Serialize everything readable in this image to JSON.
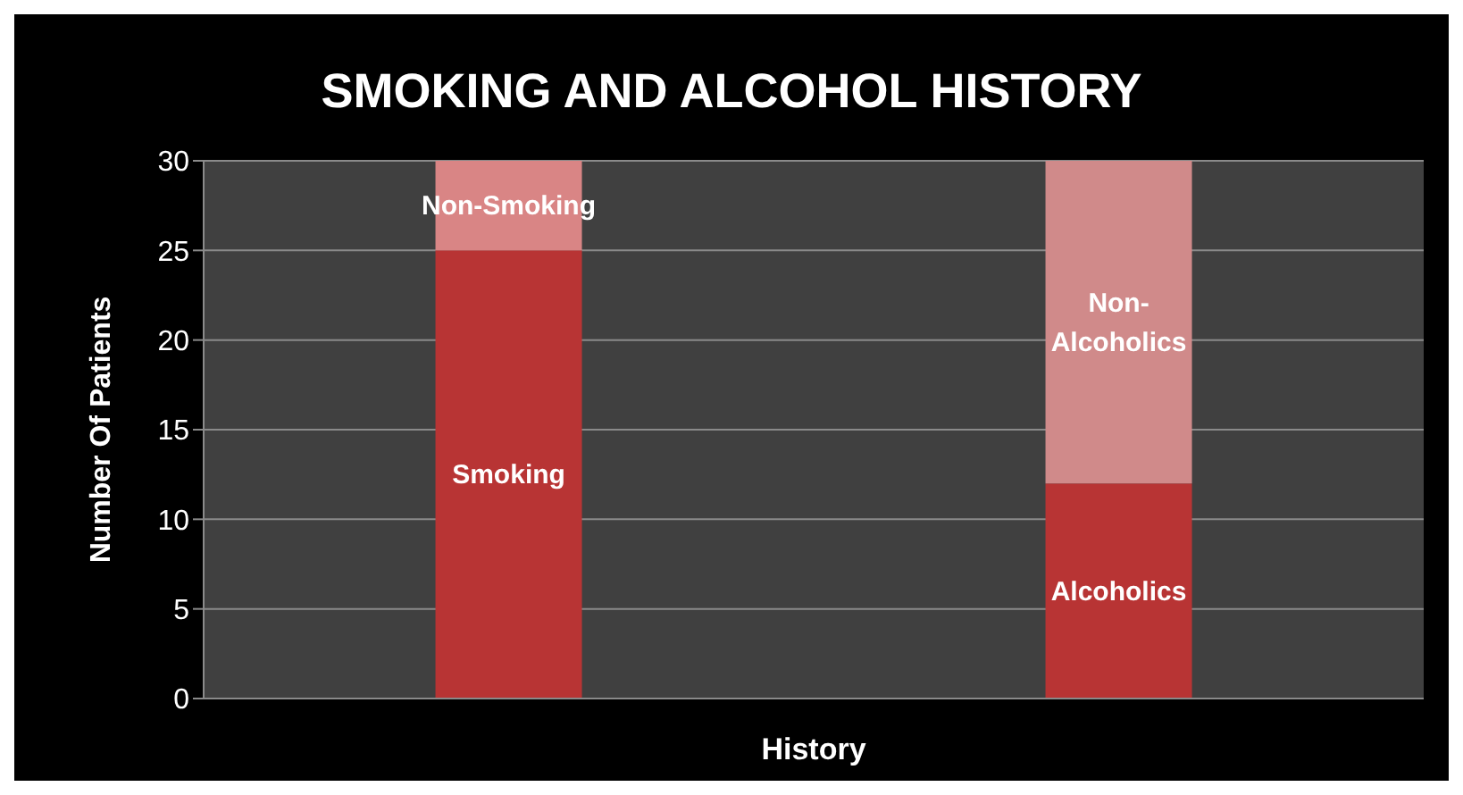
{
  "chart_data": {
    "type": "bar",
    "title": "SMOKING AND ALCOHOL HISTORY",
    "xlabel": "History",
    "ylabel": "Number Of Patients",
    "categories": [
      null,
      null
    ],
    "stacked": true,
    "series": [
      {
        "name": "Smoking",
        "color": "#b83434",
        "values": [
          25,
          null
        ]
      },
      {
        "name": "Non-Smoking",
        "color": "#d98585",
        "values": [
          5,
          null
        ]
      },
      {
        "name": "Alcoholics",
        "color": "#b83434",
        "values": [
          null,
          12
        ]
      },
      {
        "name": "Non-Alcoholics",
        "color": "#d08a8a",
        "values": [
          null,
          18
        ]
      }
    ],
    "ylim": [
      0,
      30
    ],
    "yticks": [
      0,
      5,
      10,
      15,
      20,
      25,
      30
    ],
    "grid": "y",
    "legend": false
  }
}
